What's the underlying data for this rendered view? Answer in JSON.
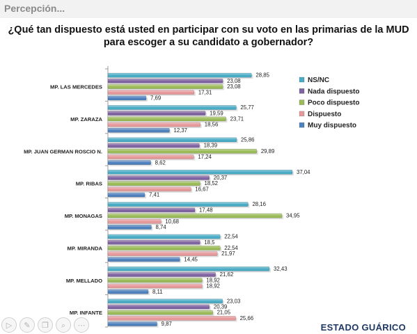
{
  "header": {
    "title": "Percepción..."
  },
  "chart_data": {
    "type": "bar",
    "orientation": "horizontal",
    "title_lines": [
      "¿Qué tan dispuesto está usted en participar con su voto en las primarias de la MUD",
      "para escoger a su candidato a gobernador?"
    ],
    "categories": [
      "MP. LAS MERCEDES",
      "MP. ZARAZA",
      "MP. JUAN GERMAN ROSCIO N.",
      "MP. RIBAS",
      "MP. MONAGAS",
      "MP. MIRANDA",
      "MP. MELLADO",
      "MP. INFANTE"
    ],
    "series": [
      {
        "name": "NS/NC",
        "color": "#4bacc6",
        "values": [
          28.85,
          25.77,
          25.86,
          37.04,
          28.16,
          22.54,
          32.43,
          23.03
        ],
        "labels": [
          "28,85",
          "25,77",
          "25,86",
          "37,04",
          "28,16",
          "22,54",
          "32,43",
          "23,03"
        ]
      },
      {
        "name": "Nada dispuesto",
        "color": "#8064a2",
        "values": [
          23.08,
          19.59,
          18.39,
          20.37,
          17.48,
          18.5,
          21.62,
          20.39
        ],
        "labels": [
          "23,08",
          "19,59",
          "18,39",
          "20,37",
          "17,48",
          "18,5",
          "21,62",
          "20,39"
        ]
      },
      {
        "name": "Poco dispuesto",
        "color": "#9bbb59",
        "values": [
          23.08,
          23.71,
          29.89,
          18.52,
          34.95,
          22.54,
          18.92,
          21.05
        ],
        "labels": [
          "23,08",
          "23,71",
          "29,89",
          "18,52",
          "34,95",
          "22,54",
          "18,92",
          "21,05"
        ]
      },
      {
        "name": "Dispuesto",
        "color": "#e6999a",
        "values": [
          17.31,
          18.56,
          17.24,
          16.67,
          10.68,
          21.97,
          18.92,
          25.66
        ],
        "labels": [
          "17,31",
          "18,56",
          "17,24",
          "16,67",
          "10,68",
          "21,97",
          "18,92",
          "25,66"
        ]
      },
      {
        "name": "Muy dispuesto",
        "color": "#4f81bd",
        "values": [
          7.69,
          12.37,
          8.62,
          7.41,
          8.74,
          14.45,
          8.11,
          9.87
        ],
        "labels": [
          "7,69",
          "12,37",
          "8,62",
          "7,41",
          "8,74",
          "14,45",
          "8,11",
          "9,87"
        ]
      }
    ],
    "legend_position": "right",
    "grid": false
  },
  "footer": {
    "brand": "ESTADO GUÁRICO"
  },
  "toolbar": {
    "icons": [
      "play-icon",
      "pen-icon",
      "copy-icon",
      "search-icon",
      "more-icon"
    ],
    "glyphs": [
      "▷",
      "✎",
      "❐",
      "⌕",
      "⋯"
    ]
  }
}
